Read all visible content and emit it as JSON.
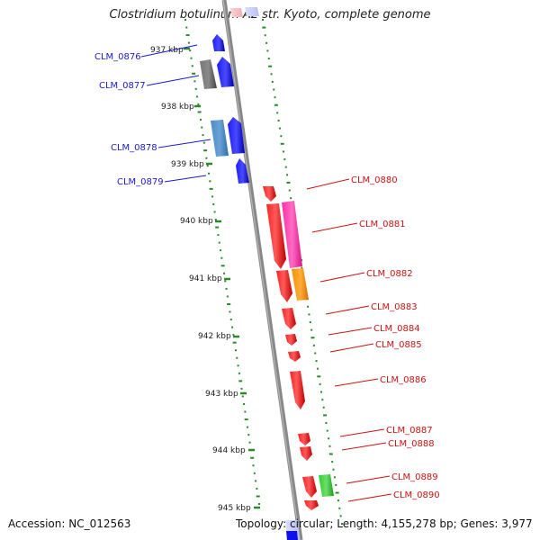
{
  "header": {
    "title": "Clostridium botulinum A2 str. Kyoto, complete genome"
  },
  "footer": {
    "accession": "Accession: NC_012563",
    "summary": "Topology: circular; Length: 4,155,278 bp; Genes: 3,977"
  },
  "colors": {
    "forward_gene": "#0000ee",
    "reverse_gene": "#ee0000",
    "backbone": "#888888",
    "gc_ticks": "#2a8a2a",
    "label_forward": "#1a1acc",
    "label_reverse": "#cc1111"
  },
  "scale_labels": [
    "937 kbp",
    "938 kbp",
    "939 kbp",
    "940 kbp",
    "941 kbp",
    "942 kbp",
    "943 kbp",
    "944 kbp",
    "945 kbp"
  ],
  "genes": [
    {
      "label": "CLM_0876",
      "strand": "+"
    },
    {
      "label": "CLM_0877",
      "strand": "+"
    },
    {
      "label": "CLM_0878",
      "strand": "+"
    },
    {
      "label": "CLM_0879",
      "strand": "+"
    },
    {
      "label": "CLM_0880",
      "strand": "-"
    },
    {
      "label": "CLM_0881",
      "strand": "-"
    },
    {
      "label": "CLM_0882",
      "strand": "-"
    },
    {
      "label": "CLM_0883",
      "strand": "-"
    },
    {
      "label": "CLM_0884",
      "strand": "-"
    },
    {
      "label": "CLM_0885",
      "strand": "-"
    },
    {
      "label": "CLM_0886",
      "strand": "-"
    },
    {
      "label": "CLM_0887",
      "strand": "-"
    },
    {
      "label": "CLM_0888",
      "strand": "-"
    },
    {
      "label": "CLM_0889",
      "strand": "-"
    },
    {
      "label": "CLM_0890",
      "strand": "-"
    }
  ]
}
